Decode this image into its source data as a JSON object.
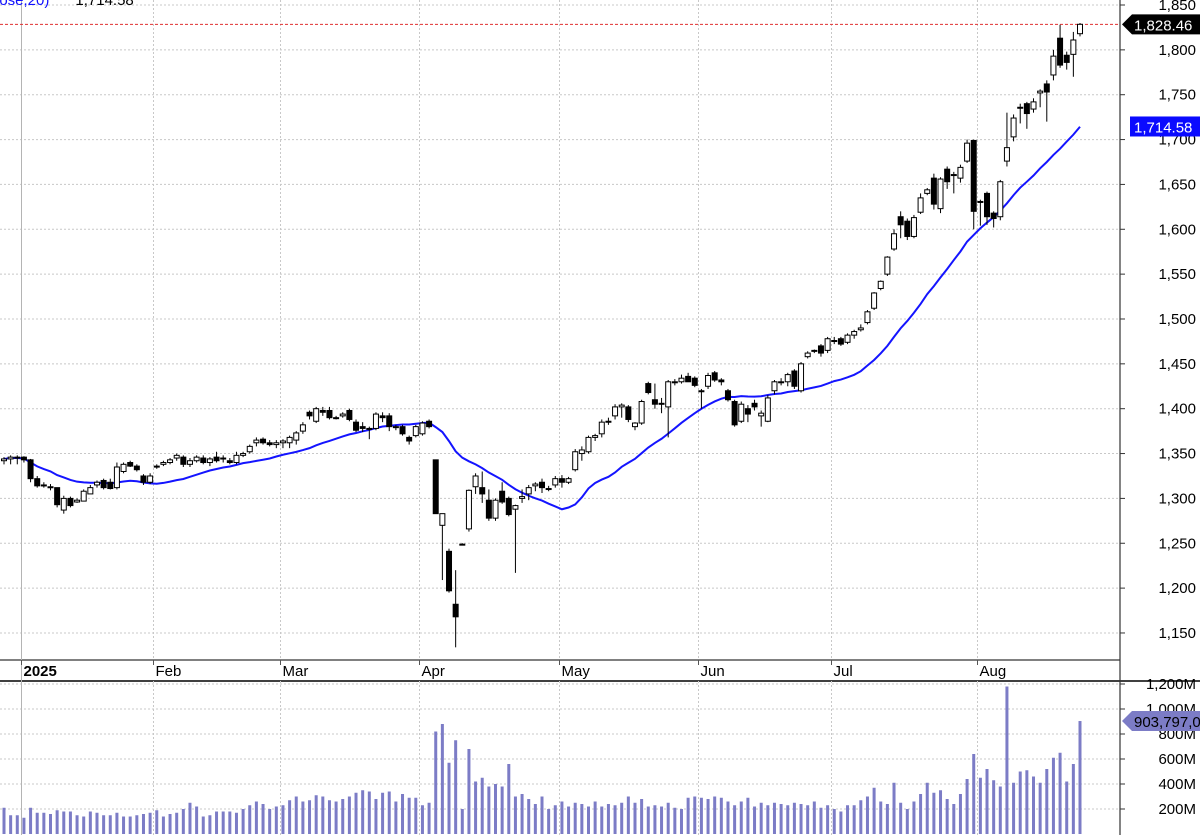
{
  "legend": {
    "indicator_text": "lose,20)",
    "indicator_value": "1,714.58"
  },
  "colors": {
    "ma_line": "#1414ff",
    "volume_bar": "#7c7cc6",
    "last_price_line": "#e03030",
    "last_price_tag": "#000000",
    "ma_tag": "#0a0aff",
    "volume_tag": "#7c7cc6",
    "grid": "#c8c8c8"
  },
  "chart_data": {
    "type": "candlestick",
    "grid": true,
    "price_axis": {
      "range": [
        1130,
        1856
      ],
      "ticks": [
        1850,
        1800,
        1750,
        1700,
        1650,
        1600,
        1550,
        1500,
        1450,
        1400,
        1350,
        1300,
        1250,
        1200,
        1150
      ],
      "tick_labels": [
        "1,850",
        "1,800",
        "1,750",
        "1,700",
        "1,650",
        "1,600",
        "1,550",
        "1,500",
        "1,450",
        "1,400",
        "1,350",
        "1,300",
        "1,250",
        "1,200",
        "1,150"
      ]
    },
    "volume_axis": {
      "unit": "M",
      "range": [
        0,
        1200
      ],
      "ticks": [
        1200,
        1000,
        800,
        600,
        400,
        200
      ],
      "tick_labels": [
        "1,200M",
        "1,000M",
        "800M",
        "600M",
        "400M",
        "200M"
      ]
    },
    "month_labels": [
      {
        "label": "2025",
        "date": "2025-01-02",
        "bold": true
      },
      {
        "label": "Feb",
        "date": "2025-02-03"
      },
      {
        "label": "Mar",
        "date": "2025-03-03"
      },
      {
        "label": "Apr",
        "date": "2025-04-01"
      },
      {
        "label": "May",
        "date": "2025-05-01"
      },
      {
        "label": "Jun",
        "date": "2025-06-02"
      },
      {
        "label": "Jul",
        "date": "2025-07-01"
      },
      {
        "label": "Aug",
        "date": "2025-08-01"
      }
    ],
    "moving_average": {
      "type": "SMA",
      "source": "close",
      "period": 20,
      "last_value": 1714.58,
      "last_label": "1,714.58"
    },
    "last_price": {
      "value": 1828.46,
      "label": "1,828.46"
    },
    "last_volume": {
      "value_m": 903.797,
      "label": "903,797,0"
    },
    "candle_fields": [
      "date",
      "open",
      "high",
      "low",
      "close",
      "volume_m"
    ],
    "candles": [
      [
        "2024-12-27",
        1342,
        1346,
        1338,
        1344,
        210
      ],
      [
        "2024-12-30",
        1344,
        1348,
        1338,
        1346,
        150
      ],
      [
        "2024-12-31",
        1346,
        1348,
        1338,
        1345,
        150
      ],
      [
        "2025-01-02",
        1346,
        1347,
        1340,
        1343,
        130
      ],
      [
        "2025-01-03",
        1343,
        1344,
        1318,
        1322,
        210
      ],
      [
        "2025-01-06",
        1322,
        1325,
        1312,
        1314,
        170
      ],
      [
        "2025-01-07",
        1314,
        1318,
        1312,
        1315,
        170
      ],
      [
        "2025-01-08",
        1313,
        1316,
        1309,
        1312,
        160
      ],
      [
        "2025-01-10",
        1312,
        1312,
        1290,
        1293,
        190
      ],
      [
        "2025-01-13",
        1287,
        1303,
        1283,
        1300,
        180
      ],
      [
        "2025-01-14",
        1300,
        1302,
        1290,
        1292,
        180
      ],
      [
        "2025-01-15",
        1296,
        1300,
        1295,
        1298,
        150
      ],
      [
        "2025-01-16",
        1297,
        1310,
        1298,
        1308,
        140
      ],
      [
        "2025-01-17",
        1305,
        1315,
        1305,
        1312,
        180
      ],
      [
        "2025-01-21",
        1315,
        1320,
        1312,
        1318,
        170
      ],
      [
        "2025-01-22",
        1320,
        1322,
        1310,
        1312,
        150
      ],
      [
        "2025-01-23",
        1318,
        1322,
        1310,
        1311,
        150
      ],
      [
        "2025-01-24",
        1312,
        1340,
        1310,
        1335,
        170
      ],
      [
        "2025-01-27",
        1330,
        1340,
        1328,
        1338,
        140
      ],
      [
        "2025-01-28",
        1340,
        1342,
        1335,
        1336,
        140
      ],
      [
        "2025-01-29",
        1336,
        1338,
        1330,
        1332,
        150
      ],
      [
        "2025-01-30",
        1325,
        1327,
        1315,
        1318,
        160
      ],
      [
        "2025-01-31",
        1318,
        1328,
        1316,
        1325,
        170
      ],
      [
        "2025-02-03",
        1336,
        1338,
        1333,
        1336,
        190
      ],
      [
        "2025-02-04",
        1338,
        1342,
        1336,
        1340,
        140
      ],
      [
        "2025-02-05",
        1340,
        1345,
        1338,
        1343,
        160
      ],
      [
        "2025-02-06",
        1345,
        1350,
        1342,
        1348,
        170
      ],
      [
        "2025-02-07",
        1346,
        1348,
        1335,
        1338,
        200
      ],
      [
        "2025-02-10",
        1338,
        1345,
        1335,
        1342,
        250
      ],
      [
        "2025-02-11",
        1342,
        1348,
        1340,
        1346,
        220
      ],
      [
        "2025-02-12",
        1345,
        1348,
        1338,
        1340,
        140
      ],
      [
        "2025-02-13",
        1340,
        1346,
        1336,
        1344,
        150
      ],
      [
        "2025-02-14",
        1346,
        1352,
        1340,
        1342,
        180
      ],
      [
        "2025-02-18",
        1345,
        1348,
        1340,
        1345,
        180
      ],
      [
        "2025-02-19",
        1342,
        1345,
        1338,
        1340,
        180
      ],
      [
        "2025-02-20",
        1340,
        1352,
        1338,
        1348,
        170
      ],
      [
        "2025-02-21",
        1348,
        1352,
        1346,
        1350,
        200
      ],
      [
        "2025-02-24",
        1352,
        1360,
        1350,
        1358,
        230
      ],
      [
        "2025-02-25",
        1362,
        1368,
        1358,
        1365,
        260
      ],
      [
        "2025-02-26",
        1366,
        1368,
        1360,
        1362,
        240
      ],
      [
        "2025-02-27",
        1362,
        1365,
        1358,
        1360,
        200
      ],
      [
        "2025-02-28",
        1360,
        1365,
        1356,
        1362,
        220
      ],
      [
        "2025-03-03",
        1362,
        1366,
        1356,
        1364,
        230
      ],
      [
        "2025-03-04",
        1362,
        1370,
        1356,
        1368,
        270
      ],
      [
        "2025-03-05",
        1365,
        1375,
        1360,
        1373,
        300
      ],
      [
        "2025-03-06",
        1375,
        1385,
        1372,
        1382,
        260
      ],
      [
        "2025-03-07",
        1396,
        1398,
        1388,
        1392,
        270
      ],
      [
        "2025-03-10",
        1386,
        1402,
        1384,
        1400,
        310
      ],
      [
        "2025-03-11",
        1398,
        1402,
        1392,
        1396,
        300
      ],
      [
        "2025-03-12",
        1398,
        1402,
        1388,
        1390,
        270
      ],
      [
        "2025-03-13",
        1390,
        1392,
        1388,
        1390,
        260
      ],
      [
        "2025-03-14",
        1392,
        1396,
        1390,
        1394,
        280
      ],
      [
        "2025-03-17",
        1398,
        1400,
        1386,
        1388,
        300
      ],
      [
        "2025-03-18",
        1385,
        1388,
        1374,
        1376,
        330
      ],
      [
        "2025-03-19",
        1380,
        1385,
        1374,
        1378,
        350
      ],
      [
        "2025-03-20",
        1378,
        1380,
        1366,
        1378,
        340
      ],
      [
        "2025-03-21",
        1378,
        1396,
        1376,
        1394,
        280
      ],
      [
        "2025-03-24",
        1392,
        1396,
        1385,
        1390,
        330
      ],
      [
        "2025-03-25",
        1392,
        1395,
        1375,
        1380,
        340
      ],
      [
        "2025-03-26",
        1380,
        1382,
        1376,
        1380,
        260
      ],
      [
        "2025-03-27",
        1380,
        1382,
        1370,
        1372,
        320
      ],
      [
        "2025-03-28",
        1368,
        1370,
        1360,
        1364,
        290
      ],
      [
        "2025-03-31",
        1370,
        1382,
        1368,
        1380,
        290
      ],
      [
        "2025-04-01",
        1372,
        1386,
        1370,
        1384,
        230
      ],
      [
        "2025-04-02",
        1386,
        1388,
        1378,
        1380,
        250
      ],
      [
        "2025-04-03",
        1343,
        1343,
        1283,
        1283,
        820
      ],
      [
        "2025-04-04",
        1270,
        1283,
        1209,
        1283,
        880
      ],
      [
        "2025-04-07",
        1241,
        1244,
        1195,
        1197,
        570
      ],
      [
        "2025-04-08",
        1182,
        1220,
        1134,
        1168,
        750
      ],
      [
        "2025-04-09",
        1249,
        1250,
        1248,
        1249,
        200
      ],
      [
        "2025-04-10",
        1266,
        1310,
        1263,
        1309,
        680
      ],
      [
        "2025-04-11",
        1313,
        1328,
        1305,
        1325,
        420
      ],
      [
        "2025-04-14",
        1312,
        1330,
        1295,
        1305,
        450
      ],
      [
        "2025-04-15",
        1298,
        1310,
        1275,
        1278,
        380
      ],
      [
        "2025-04-16",
        1278,
        1300,
        1275,
        1298,
        400
      ],
      [
        "2025-04-17",
        1308,
        1318,
        1294,
        1296,
        380
      ],
      [
        "2025-04-21",
        1300,
        1302,
        1280,
        1282,
        560
      ],
      [
        "2025-04-22",
        1288,
        1293,
        1217,
        1292,
        300
      ],
      [
        "2025-04-23",
        1300,
        1310,
        1295,
        1302,
        320
      ],
      [
        "2025-04-24",
        1305,
        1315,
        1298,
        1312,
        280
      ],
      [
        "2025-04-25",
        1314,
        1318,
        1308,
        1316,
        240
      ],
      [
        "2025-04-28",
        1318,
        1322,
        1306,
        1312,
        300
      ],
      [
        "2025-04-29",
        1310,
        1314,
        1308,
        1311,
        200
      ],
      [
        "2025-04-30",
        1315,
        1325,
        1312,
        1322,
        230
      ],
      [
        "2025-05-01",
        1322,
        1326,
        1312,
        1318,
        260
      ],
      [
        "2025-05-02",
        1318,
        1324,
        1316,
        1322,
        220
      ],
      [
        "2025-05-05",
        1332,
        1355,
        1330,
        1352,
        250
      ],
      [
        "2025-05-06",
        1350,
        1358,
        1342,
        1354,
        240
      ],
      [
        "2025-05-07",
        1352,
        1370,
        1350,
        1368,
        220
      ],
      [
        "2025-05-08",
        1368,
        1372,
        1364,
        1370,
        260
      ],
      [
        "2025-05-09",
        1372,
        1388,
        1368,
        1385,
        220
      ],
      [
        "2025-05-12",
        1385,
        1390,
        1382,
        1386,
        240
      ],
      [
        "2025-05-13",
        1392,
        1405,
        1388,
        1402,
        230
      ],
      [
        "2025-05-14",
        1402,
        1406,
        1390,
        1404,
        250
      ],
      [
        "2025-05-15",
        1402,
        1404,
        1385,
        1388,
        300
      ],
      [
        "2025-05-16",
        1380,
        1385,
        1376,
        1384,
        250
      ],
      [
        "2025-05-19",
        1384,
        1410,
        1382,
        1408,
        280
      ],
      [
        "2025-05-20",
        1428,
        1430,
        1416,
        1418,
        220
      ],
      [
        "2025-05-21",
        1410,
        1428,
        1400,
        1405,
        230
      ],
      [
        "2025-05-22",
        1406,
        1412,
        1395,
        1405,
        220
      ],
      [
        "2025-05-23",
        1402,
        1432,
        1368,
        1430,
        250
      ],
      [
        "2025-05-27",
        1430,
        1433,
        1426,
        1430,
        210
      ],
      [
        "2025-05-28",
        1430,
        1438,
        1428,
        1434,
        200
      ],
      [
        "2025-05-29",
        1436,
        1440,
        1430,
        1430,
        290
      ],
      [
        "2025-05-30",
        1434,
        1436,
        1424,
        1426,
        300
      ],
      [
        "2025-06-02",
        1420,
        1422,
        1400,
        1420,
        290
      ],
      [
        "2025-06-03",
        1425,
        1440,
        1422,
        1437,
        280
      ],
      [
        "2025-06-04",
        1440,
        1442,
        1430,
        1432,
        300
      ],
      [
        "2025-06-05",
        1432,
        1434,
        1426,
        1430,
        290
      ],
      [
        "2025-06-06",
        1420,
        1422,
        1408,
        1410,
        260
      ],
      [
        "2025-06-09",
        1408,
        1410,
        1380,
        1382,
        230
      ],
      [
        "2025-06-10",
        1386,
        1408,
        1384,
        1405,
        260
      ],
      [
        "2025-06-11",
        1400,
        1404,
        1385,
        1394,
        290
      ],
      [
        "2025-06-12",
        1406,
        1410,
        1398,
        1402,
        220
      ],
      [
        "2025-06-13",
        1392,
        1398,
        1380,
        1395,
        250
      ],
      [
        "2025-06-16",
        1386,
        1415,
        1385,
        1412,
        230
      ],
      [
        "2025-06-17",
        1420,
        1432,
        1416,
        1430,
        250
      ],
      [
        "2025-06-18",
        1430,
        1434,
        1426,
        1430,
        240
      ],
      [
        "2025-06-20",
        1430,
        1440,
        1425,
        1438,
        230
      ],
      [
        "2025-06-23",
        1442,
        1444,
        1422,
        1425,
        250
      ],
      [
        "2025-06-24",
        1420,
        1452,
        1418,
        1450,
        240
      ],
      [
        "2025-06-25",
        1458,
        1464,
        1456,
        1462,
        230
      ],
      [
        "2025-06-26",
        1464,
        1466,
        1462,
        1465,
        260
      ],
      [
        "2025-06-27",
        1470,
        1472,
        1458,
        1462,
        210
      ],
      [
        "2025-06-30",
        1465,
        1480,
        1462,
        1478,
        230
      ],
      [
        "2025-07-01",
        1476,
        1480,
        1472,
        1476,
        200
      ],
      [
        "2025-07-02",
        1478,
        1480,
        1470,
        1472,
        180
      ],
      [
        "2025-07-03",
        1474,
        1484,
        1472,
        1482,
        230
      ],
      [
        "2025-07-07",
        1482,
        1488,
        1478,
        1486,
        230
      ],
      [
        "2025-07-08",
        1488,
        1494,
        1486,
        1490,
        270
      ],
      [
        "2025-07-09",
        1496,
        1510,
        1494,
        1508,
        300
      ],
      [
        "2025-07-10",
        1512,
        1530,
        1510,
        1529,
        370
      ],
      [
        "2025-07-11",
        1534,
        1543,
        1532,
        1542,
        260
      ],
      [
        "2025-07-14",
        1550,
        1570,
        1548,
        1569,
        240
      ],
      [
        "2025-07-15",
        1578,
        1600,
        1576,
        1595,
        410
      ],
      [
        "2025-07-16",
        1614,
        1620,
        1590,
        1605,
        250
      ],
      [
        "2025-07-17",
        1609,
        1612,
        1588,
        1592,
        200
      ],
      [
        "2025-07-18",
        1592,
        1616,
        1590,
        1613,
        260
      ],
      [
        "2025-07-21",
        1619,
        1640,
        1617,
        1635,
        320
      ],
      [
        "2025-07-22",
        1640,
        1646,
        1638,
        1644,
        410
      ],
      [
        "2025-07-23",
        1657,
        1662,
        1622,
        1628,
        330
      ],
      [
        "2025-07-24",
        1623,
        1658,
        1618,
        1656,
        350
      ],
      [
        "2025-07-25",
        1667,
        1670,
        1645,
        1653,
        280
      ],
      [
        "2025-07-28",
        1661,
        1664,
        1640,
        1661,
        240
      ],
      [
        "2025-07-29",
        1657,
        1672,
        1652,
        1669,
        320
      ],
      [
        "2025-07-30",
        1676,
        1700,
        1674,
        1696,
        440
      ],
      [
        "2025-07-31",
        1699,
        1700,
        1600,
        1620,
        640
      ],
      [
        "2025-08-01",
        1631,
        1633,
        1604,
        1631,
        450
      ],
      [
        "2025-08-04",
        1640,
        1642,
        1605,
        1614,
        520
      ],
      [
        "2025-08-05",
        1618,
        1620,
        1602,
        1612,
        430
      ],
      [
        "2025-08-06",
        1614,
        1655,
        1610,
        1653,
        380
      ],
      [
        "2025-08-07",
        1676,
        1730,
        1670,
        1691,
        1180
      ],
      [
        "2025-08-08",
        1703,
        1728,
        1698,
        1724,
        410
      ],
      [
        "2025-08-11",
        1736,
        1740,
        1718,
        1735,
        500
      ],
      [
        "2025-08-12",
        1740,
        1742,
        1712,
        1729,
        510
      ],
      [
        "2025-08-13",
        1734,
        1746,
        1730,
        1742,
        460
      ],
      [
        "2025-08-14",
        1752,
        1756,
        1736,
        1754,
        410
      ],
      [
        "2025-08-15",
        1762,
        1766,
        1720,
        1753,
        520
      ],
      [
        "2025-08-18",
        1772,
        1800,
        1766,
        1793,
        610
      ],
      [
        "2025-08-19",
        1813,
        1828,
        1780,
        1783,
        650
      ],
      [
        "2025-08-20",
        1794,
        1798,
        1778,
        1786,
        420
      ],
      [
        "2025-08-21",
        1795,
        1820,
        1770,
        1811,
        560
      ],
      [
        "2025-08-22",
        1818,
        1830,
        1815,
        1828.46,
        903.797
      ]
    ]
  }
}
